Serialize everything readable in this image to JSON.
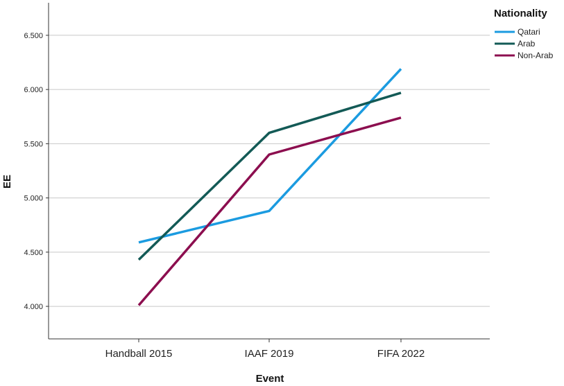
{
  "chart_data": {
    "type": "line",
    "xlabel": "Event",
    "ylabel": "EE",
    "categories": [
      "Handball 2015",
      "IAAF 2019",
      "FIFA 2022"
    ],
    "ylim": [
      3.7,
      6.8
    ],
    "yticks": [
      4.0,
      4.5,
      5.0,
      5.5,
      6.0,
      6.5
    ],
    "ytick_labels": [
      "4.000",
      "4.500",
      "5.000",
      "5.500",
      "6.000",
      "6.500"
    ],
    "grid": "horizontal",
    "legend": {
      "title": "Nationality",
      "placement": "top-right, outside plot"
    },
    "series": [
      {
        "name": "Qatari",
        "color": "#1b9be0",
        "values": [
          4.59,
          4.88,
          6.19
        ]
      },
      {
        "name": "Arab",
        "color": "#135a56",
        "values": [
          4.43,
          5.6,
          5.97
        ]
      },
      {
        "name": "Non-Arab",
        "color": "#8c0e4f",
        "values": [
          4.01,
          5.4,
          5.74
        ]
      }
    ]
  }
}
